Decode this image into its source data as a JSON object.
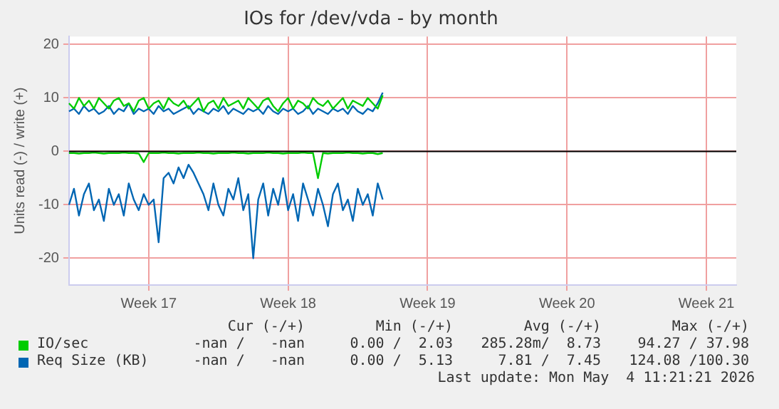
{
  "chart_data": {
    "type": "line",
    "title": "IOs for /dev/vda - by month",
    "ylabel": "Units read (-) / write (+)",
    "categories": [
      null,
      null,
      null,
      null,
      null,
      null,
      null,
      null,
      null,
      null,
      null,
      null,
      null,
      null,
      null,
      null,
      "Week 17",
      null,
      null,
      null,
      null,
      null,
      null,
      null,
      null,
      null,
      null,
      null,
      null,
      null,
      null,
      null,
      null,
      null,
      null,
      null,
      null,
      null,
      null,
      null,
      null,
      null,
      null,
      null,
      "Week 18",
      null,
      null,
      null,
      null,
      null,
      null,
      null,
      null,
      null,
      null,
      null,
      null,
      null,
      null,
      null,
      null,
      null,
      null,
      null,
      null,
      null,
      null,
      null,
      null,
      null,
      null,
      null,
      "Week 19",
      null,
      null,
      null,
      null,
      null,
      null,
      null,
      null,
      null,
      null,
      null,
      null,
      null,
      null,
      null,
      null,
      null,
      null,
      null,
      null,
      null,
      null,
      null,
      null,
      null,
      null,
      null,
      "Week 20",
      null,
      null,
      null,
      null,
      null,
      null,
      null,
      null,
      null,
      null,
      null,
      null,
      null,
      null,
      null,
      null,
      null,
      null,
      null,
      null,
      null,
      null,
      null,
      null,
      null,
      null,
      null,
      "Week 21",
      null,
      null,
      null,
      null,
      null,
      null
    ],
    "series": [
      {
        "name": "IO/sec",
        "color": "#00cc00",
        "values": [
          9,
          8,
          10,
          8.5,
          9.5,
          8,
          10,
          9,
          8,
          9.5,
          10,
          8.5,
          9,
          7.5,
          9.5,
          10,
          8,
          9,
          9.5,
          8,
          10,
          9,
          8.5,
          9.5,
          8,
          9,
          10,
          7.5,
          9,
          9.5,
          8,
          10,
          8.5,
          9,
          9.5,
          8,
          10,
          9,
          8,
          9.5,
          10,
          8.5,
          7.5,
          9,
          10,
          8,
          9.5,
          9,
          8,
          10,
          9,
          8.5,
          9.5,
          8,
          9,
          10,
          8,
          9.5,
          9,
          8.5,
          10,
          9,
          8,
          10.5,
          null,
          null,
          null,
          null,
          null,
          null,
          null,
          null,
          null,
          null,
          null,
          null,
          null,
          null,
          null,
          null,
          null,
          null,
          null,
          null,
          null,
          null,
          null,
          null,
          null,
          null,
          null,
          null,
          null,
          null,
          null,
          null,
          null,
          null,
          null,
          null,
          null,
          null,
          null,
          null,
          null,
          null,
          null,
          null,
          null,
          null,
          null,
          null,
          null,
          null,
          null,
          null,
          null,
          null,
          null,
          null,
          null,
          null,
          null,
          null,
          null,
          null,
          null,
          null,
          null,
          null,
          null,
          null,
          null,
          null,
          null
        ]
      },
      {
        "color": "#00cc00",
        "values": [
          -0.3,
          -0.3,
          -0.4,
          -0.3,
          -0.3,
          -0.2,
          -0.3,
          -0.4,
          -0.3,
          -0.3,
          -0.3,
          -0.2,
          -0.3,
          -0.3,
          -0.4,
          -2,
          -0.3,
          -0.3,
          -0.3,
          -0.2,
          -0.3,
          -0.3,
          -0.4,
          -0.3,
          -0.3,
          -0.3,
          -0.2,
          -0.3,
          -0.3,
          -0.4,
          -0.3,
          -0.3,
          -0.3,
          -0.2,
          -0.3,
          -0.3,
          -0.4,
          -0.3,
          -0.3,
          -0.3,
          -0.2,
          -0.3,
          -0.3,
          -0.4,
          -0.3,
          -0.3,
          -0.3,
          -0.2,
          -0.3,
          -0.3,
          -5,
          -0.3,
          -0.4,
          -0.3,
          -0.3,
          -0.3,
          -0.2,
          -0.3,
          -0.3,
          -0.4,
          -0.3,
          -0.3,
          -0.5,
          -0.3,
          null,
          null,
          null,
          null,
          null,
          null,
          null,
          null,
          null,
          null,
          null,
          null,
          null,
          null,
          null,
          null,
          null,
          null,
          null,
          null,
          null,
          null,
          null,
          null,
          null,
          null,
          null,
          null,
          null,
          null,
          null,
          null,
          null,
          null,
          null,
          null,
          null,
          null,
          null,
          null,
          null,
          null,
          null,
          null,
          null,
          null,
          null,
          null,
          null,
          null,
          null,
          null,
          null,
          null,
          null,
          null,
          null,
          null,
          null,
          null,
          null,
          null,
          null,
          null,
          null,
          null,
          null,
          null,
          null,
          null,
          null
        ]
      },
      {
        "name": "Req Size (KB)",
        "color": "#0066b3",
        "values": [
          7.5,
          8,
          7,
          8.5,
          7.5,
          8,
          7,
          7.5,
          8.5,
          7,
          8,
          7.5,
          9,
          7,
          8,
          7.5,
          8,
          7,
          8.5,
          7.5,
          8,
          7,
          7.5,
          8,
          8.5,
          7,
          8,
          7.5,
          7,
          8,
          7.5,
          8.5,
          7,
          8,
          7.5,
          7,
          8,
          7.5,
          8,
          7,
          8.5,
          7.5,
          7,
          8,
          7.5,
          8,
          7,
          7.5,
          8.5,
          7,
          8,
          7.5,
          7,
          8,
          7.5,
          8,
          7,
          8.5,
          7.5,
          7,
          8,
          7.5,
          9,
          11,
          null,
          null,
          null,
          null,
          null,
          null,
          null,
          null,
          null,
          null,
          null,
          null,
          null,
          null,
          null,
          null,
          null,
          null,
          null,
          null,
          null,
          null,
          null,
          null,
          null,
          null,
          null,
          null,
          null,
          null,
          null,
          null,
          null,
          null,
          null,
          null,
          null,
          null,
          null,
          null,
          null,
          null,
          null,
          null,
          null,
          null,
          null,
          null,
          null,
          null,
          null,
          null,
          null,
          null,
          null,
          null,
          null,
          null,
          null,
          null,
          null,
          null,
          null,
          null,
          null,
          null,
          null,
          null,
          null,
          null,
          null
        ]
      },
      {
        "color": "#0066b3",
        "values": [
          -10,
          -7,
          -12,
          -8,
          -6,
          -11,
          -9,
          -13,
          -7,
          -10,
          -8,
          -12,
          -6,
          -9,
          -11,
          -8,
          -10,
          -9,
          -17,
          -5,
          -4,
          -6,
          -3,
          -5,
          -2.5,
          -4,
          -6,
          -8,
          -11,
          -6,
          -10,
          -12,
          -7,
          -9,
          -5,
          -11,
          -8,
          -20,
          -9,
          -6,
          -12,
          -7,
          -10,
          -5,
          -11,
          -8,
          -13,
          -6,
          -9,
          -12,
          -7,
          -10,
          -14,
          -8,
          -6,
          -11,
          -9,
          -13,
          -7,
          -10,
          -8,
          -12,
          -6,
          -9,
          null,
          null,
          null,
          null,
          null,
          null,
          null,
          null,
          null,
          null,
          null,
          null,
          null,
          null,
          null,
          null,
          null,
          null,
          null,
          null,
          null,
          null,
          null,
          null,
          null,
          null,
          null,
          null,
          null,
          null,
          null,
          null,
          null,
          null,
          null,
          null,
          null,
          null,
          null,
          null,
          null,
          null,
          null,
          null,
          null,
          null,
          null,
          null,
          null,
          null,
          null,
          null,
          null,
          null,
          null,
          null,
          null,
          null,
          null,
          null,
          null,
          null,
          null,
          null,
          null,
          null,
          null,
          null,
          null,
          null,
          null
        ]
      }
    ],
    "ylim": [
      -25,
      21.5
    ],
    "yticks": [
      -20,
      -10,
      0,
      10,
      20
    ],
    "ref_lines": [
      {
        "axis": "y",
        "value": 0,
        "color": "#000000"
      }
    ],
    "grid": true,
    "legend": "bottom",
    "marker": "none",
    "line_style": "solid",
    "annotations": [
      "Cur (-/+)",
      "Min (-/+)",
      "Avg (-/+)",
      "Max (-/+)",
      "-nan /   -nan",
      "0.00 /  2.03",
      "285.28m/  8.73",
      "94.27 / 37.98",
      "-nan /   -nan",
      "0.00 /  5.13",
      "7.81 /  7.45",
      "124.08 /100.30",
      "Last update: Mon May  4 11:21:21 2026"
    ]
  }
}
